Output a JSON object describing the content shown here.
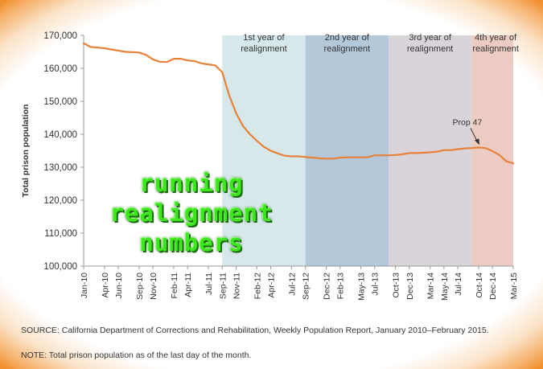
{
  "chart_data": {
    "type": "line",
    "title": "",
    "ylabel": "Total prison population",
    "xlabel": "",
    "ylim": [
      100000,
      170000
    ],
    "yticks": [
      100000,
      110000,
      120000,
      130000,
      140000,
      150000,
      160000,
      170000
    ],
    "ytick_labels": [
      "100,000",
      "110,000",
      "120,000",
      "130,000",
      "140,000",
      "150,000",
      "160,000",
      "170,000"
    ],
    "xtick_labels": [
      "Jan-10",
      "Apr-10",
      "Jun-10",
      "Sep-10",
      "Nov-10",
      "Feb-11",
      "Apr-11",
      "Jul-11",
      "Sep-11",
      "Nov-11",
      "Feb-12",
      "Apr-12",
      "Jul-12",
      "Sep-12",
      "Dec-12",
      "Feb-13",
      "May-13",
      "Jul-13",
      "Oct-13",
      "Dec-13",
      "Mar-14",
      "May-14",
      "Jul-14",
      "Oct-14",
      "Dec-14",
      "Mar-15"
    ],
    "series_color": "#e8813a",
    "x": [
      "Jan-10",
      "Feb-10",
      "Mar-10",
      "Apr-10",
      "May-10",
      "Jun-10",
      "Jul-10",
      "Aug-10",
      "Sep-10",
      "Oct-10",
      "Nov-10",
      "Dec-10",
      "Jan-11",
      "Feb-11",
      "Mar-11",
      "Apr-11",
      "May-11",
      "Jun-11",
      "Jul-11",
      "Aug-11",
      "Sep-11",
      "Oct-11",
      "Nov-11",
      "Dec-11",
      "Jan-12",
      "Feb-12",
      "Mar-12",
      "Apr-12",
      "May-12",
      "Jun-12",
      "Jul-12",
      "Aug-12",
      "Sep-12",
      "Oct-12",
      "Nov-12",
      "Dec-12",
      "Jan-13",
      "Feb-13",
      "Mar-13",
      "Apr-13",
      "May-13",
      "Jun-13",
      "Jul-13",
      "Aug-13",
      "Sep-13",
      "Oct-13",
      "Nov-13",
      "Dec-13",
      "Jan-14",
      "Feb-14",
      "Mar-14",
      "Apr-14",
      "May-14",
      "Jun-14",
      "Jul-14",
      "Aug-14",
      "Sep-14",
      "Oct-14",
      "Nov-14",
      "Dec-14",
      "Jan-15",
      "Feb-15",
      "Mar-15"
    ],
    "values": [
      167600,
      166500,
      166300,
      166100,
      165700,
      165400,
      165000,
      164900,
      164800,
      164100,
      162700,
      162000,
      161900,
      162900,
      162900,
      162400,
      162200,
      161500,
      161200,
      160900,
      158800,
      151800,
      146400,
      142500,
      140000,
      138000,
      136200,
      135000,
      134200,
      133500,
      133300,
      133300,
      133100,
      132900,
      132700,
      132600,
      132600,
      132900,
      133000,
      133000,
      133000,
      133000,
      133600,
      133600,
      133600,
      133700,
      133900,
      134300,
      134300,
      134400,
      134500,
      134700,
      135200,
      135200,
      135500,
      135700,
      135800,
      136000,
      135800,
      134900,
      133700,
      131800,
      131200
    ],
    "periods": [
      {
        "label": "1st year of realignment",
        "start": "Sep-11",
        "end": "Sep-12",
        "color": "#d6e8ea"
      },
      {
        "label": "2nd year of realignment",
        "start": "Sep-12",
        "end": "Sep-13",
        "color": "#b3c8d9"
      },
      {
        "label": "3rd year of realignment",
        "start": "Sep-13",
        "end": "Sep-14",
        "color": "#d9d4da"
      },
      {
        "label": "4th year of realignment",
        "start": "Sep-14",
        "end": "Mar-15",
        "color": "#eccbc2"
      }
    ],
    "period_labels": [
      {
        "line1": "1st year of",
        "line2": "realignment"
      },
      {
        "line1": "2nd year of",
        "line2": "realignment"
      },
      {
        "line1": "3rd year of",
        "line2": "realignment"
      },
      {
        "line1": "4th year of",
        "line2": "realignment"
      }
    ],
    "annotations": [
      {
        "text": "Prop 47",
        "at": "Oct-14",
        "value": 136000
      }
    ],
    "grid": false
  },
  "source_text": "SOURCE: California Department of Corrections and Rehabilitation, Weekly Population Report, January 2010–February 2015.",
  "note_text": "NOTE: Total prison population as of the last day of the month.",
  "overlay_text": {
    "line1": "running",
    "line2": "realignment",
    "line3": "numbers"
  }
}
